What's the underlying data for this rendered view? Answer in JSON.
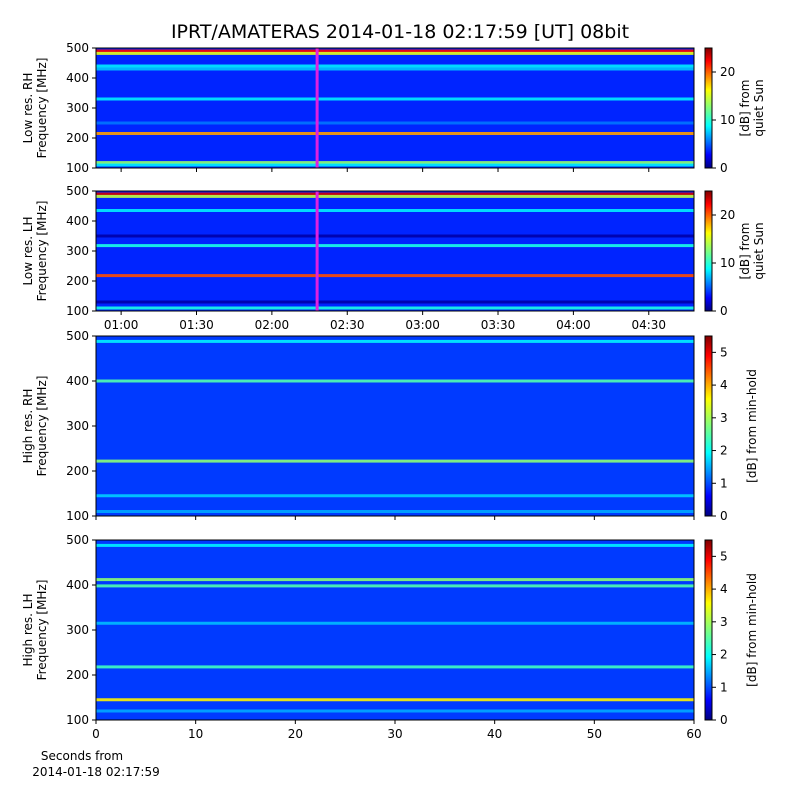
{
  "title": "IPRT/AMATERAS 2014-01-18 02:17:59 [UT]   08bit",
  "xlabel": [
    "Seconds from",
    "2014-01-18 02:17:59"
  ],
  "chart_data": [
    {
      "type": "heatmap",
      "ylabel": [
        "Low res. RH",
        "Frequency [MHz]"
      ],
      "ylim": [
        100,
        500
      ],
      "yticks": [
        100,
        200,
        300,
        400,
        500
      ],
      "xlim": [
        50,
        288
      ],
      "cursor": 138,
      "cursor_color": "#e020e0",
      "colorbar": {
        "label": [
          "[dB] from",
          "quiet Sun"
        ],
        "lim": [
          0,
          25
        ],
        "ticks": [
          0,
          10,
          20
        ]
      },
      "background": 4,
      "bands": [
        {
          "y": 490,
          "value": 22
        },
        {
          "y": 482,
          "value": 15
        },
        {
          "y": 440,
          "value": 9
        },
        {
          "y": 430,
          "value": 8
        },
        {
          "y": 330,
          "value": 9
        },
        {
          "y": 250,
          "value": 6
        },
        {
          "y": 215,
          "value": 18
        },
        {
          "y": 118,
          "value": 13
        },
        {
          "y": 110,
          "value": 9
        }
      ]
    },
    {
      "type": "heatmap",
      "ylabel": [
        "Low res. LH",
        "Frequency [MHz]"
      ],
      "ylim": [
        100,
        500
      ],
      "yticks": [
        100,
        200,
        300,
        400,
        500
      ],
      "xlim": [
        50,
        288
      ],
      "cursor": 138,
      "cursor_color": "#e020e0",
      "xticks": [
        {
          "value": 60,
          "label": "01:00"
        },
        {
          "value": 90,
          "label": "01:30"
        },
        {
          "value": 120,
          "label": "02:00"
        },
        {
          "value": 150,
          "label": "02:30"
        },
        {
          "value": 180,
          "label": "03:00"
        },
        {
          "value": 210,
          "label": "03:30"
        },
        {
          "value": 240,
          "label": "04:00"
        },
        {
          "value": 270,
          "label": "04:30"
        }
      ],
      "colorbar": {
        "label": [
          "[dB] from",
          "quiet Sun"
        ],
        "lim": [
          0,
          25
        ],
        "ticks": [
          0,
          10,
          20
        ]
      },
      "background": 4,
      "bands": [
        {
          "y": 490,
          "value": 23
        },
        {
          "y": 482,
          "value": 14
        },
        {
          "y": 435,
          "value": 9
        },
        {
          "y": 350,
          "value": 1
        },
        {
          "y": 318,
          "value": 10
        },
        {
          "y": 218,
          "value": 20
        },
        {
          "y": 130,
          "value": 1
        },
        {
          "y": 110,
          "value": 10
        }
      ]
    },
    {
      "type": "heatmap",
      "ylabel": [
        "High res. RH",
        "Frequency [MHz]"
      ],
      "ylim": [
        100,
        500
      ],
      "yticks": [
        100,
        200,
        300,
        400,
        500
      ],
      "xlim": [
        0,
        60
      ],
      "colorbar": {
        "label": [
          "[dB] from min-hold"
        ],
        "lim": [
          0,
          5.5
        ],
        "ticks": [
          0,
          1,
          2,
          3,
          4,
          5
        ]
      },
      "background": 1,
      "bands": [
        {
          "y": 488,
          "value": 2
        },
        {
          "y": 400,
          "value": 2.5
        },
        {
          "y": 222,
          "value": 2.8
        },
        {
          "y": 145,
          "value": 1.8
        },
        {
          "y": 110,
          "value": 1.6
        }
      ]
    },
    {
      "type": "heatmap",
      "ylabel": [
        "High res. LH",
        "Frequency [MHz]"
      ],
      "ylim": [
        100,
        500
      ],
      "yticks": [
        100,
        200,
        300,
        400,
        500
      ],
      "xlim": [
        0,
        60
      ],
      "xticks": [
        0,
        10,
        20,
        30,
        40,
        50,
        60
      ],
      "colorbar": {
        "label": [
          "[dB] from min-hold"
        ],
        "lim": [
          0,
          5.5
        ],
        "ticks": [
          0,
          1,
          2,
          3,
          4,
          5
        ]
      },
      "background": 1,
      "bands": [
        {
          "y": 488,
          "value": 2
        },
        {
          "y": 412,
          "value": 2.8
        },
        {
          "y": 398,
          "value": 2.5
        },
        {
          "y": 315,
          "value": 1.7
        },
        {
          "y": 218,
          "value": 2.4
        },
        {
          "y": 145,
          "value": 3.5
        },
        {
          "y": 120,
          "value": 1.6
        }
      ]
    }
  ]
}
